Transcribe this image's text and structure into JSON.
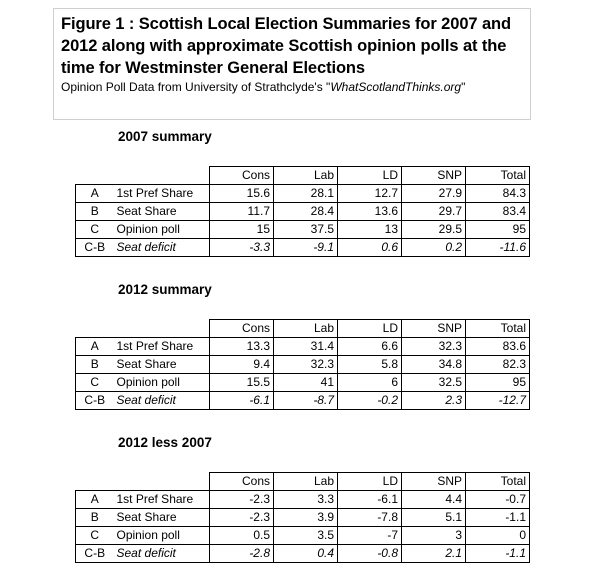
{
  "figure": {
    "title": "Figure 1 : Scottish Local Election Summaries for 2007 and 2012 along with approximate  Scottish opinion polls at the time for Westminster General Elections",
    "source_prefix": "Opinion Poll Data from University of Strathclyde's \"",
    "source_site": "WhatScotlandThinks.org",
    "source_suffix": "\""
  },
  "columns": [
    "Cons",
    "Lab",
    "LD",
    "SNP",
    "Total"
  ],
  "sections": [
    {
      "title": "2007 summary",
      "rows": [
        {
          "code": "A",
          "label": "1st Pref Share",
          "values": [
            "15.6",
            "28.1",
            "12.7",
            "27.9",
            "84.3"
          ]
        },
        {
          "code": "B",
          "label": "Seat Share",
          "values": [
            "11.7",
            "28.4",
            "13.6",
            "29.7",
            "83.4"
          ]
        },
        {
          "code": "C",
          "label": "Opinion poll",
          "values": [
            "15",
            "37.5",
            "13",
            "29.5",
            "95"
          ]
        },
        {
          "code": "C-B",
          "label": "Seat deficit",
          "values": [
            "-3.3",
            "-9.1",
            "0.6",
            "0.2",
            "-11.6"
          ]
        }
      ]
    },
    {
      "title": "2012 summary",
      "rows": [
        {
          "code": "A",
          "label": "1st Pref Share",
          "values": [
            "13.3",
            "31.4",
            "6.6",
            "32.3",
            "83.6"
          ]
        },
        {
          "code": "B",
          "label": "Seat Share",
          "values": [
            "9.4",
            "32.3",
            "5.8",
            "34.8",
            "82.3"
          ]
        },
        {
          "code": "C",
          "label": "Opinion poll",
          "values": [
            "15.5",
            "41",
            "6",
            "32.5",
            "95"
          ]
        },
        {
          "code": "C-B",
          "label": "Seat deficit",
          "values": [
            "-6.1",
            "-8.7",
            "-0.2",
            "2.3",
            "-12.7"
          ]
        }
      ]
    },
    {
      "title": "2012 less 2007",
      "rows": [
        {
          "code": "A",
          "label": "1st Pref Share",
          "values": [
            "-2.3",
            "3.3",
            "-6.1",
            "4.4",
            "-0.7"
          ]
        },
        {
          "code": "B",
          "label": "Seat Share",
          "values": [
            "-2.3",
            "3.9",
            "-7.8",
            "5.1",
            "-1.1"
          ]
        },
        {
          "code": "C",
          "label": "Opinion poll",
          "values": [
            "0.5",
            "3.5",
            "-7",
            "3",
            "0"
          ]
        },
        {
          "code": "C-B",
          "label": "Seat deficit",
          "values": [
            "-2.8",
            "0.4",
            "-0.8",
            "2.1",
            "-1.1"
          ]
        }
      ]
    }
  ]
}
